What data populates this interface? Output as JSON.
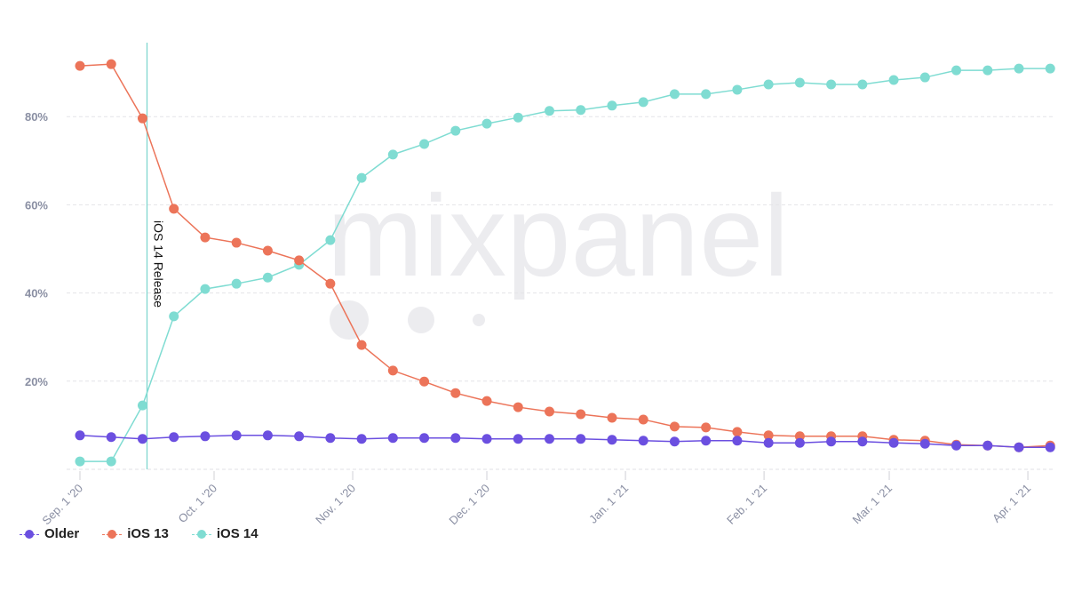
{
  "chart_data": {
    "type": "line",
    "title": "",
    "xlabel": "",
    "ylabel": "",
    "ylim": [
      0,
      100
    ],
    "yticks": [
      20,
      40,
      60,
      80
    ],
    "ytick_format": "percent",
    "grid": true,
    "legend_position": "bottom-left",
    "x_tick_labels": [
      {
        "date": "2020-09-01",
        "label": "Sep. 1 '20"
      },
      {
        "date": "2020-10-01",
        "label": "Oct. 1 '20"
      },
      {
        "date": "2020-11-01",
        "label": "Nov. 1 '20"
      },
      {
        "date": "2020-12-01",
        "label": "Dec. 1 '20"
      },
      {
        "date": "2021-01-01",
        "label": "Jan. 1 '21"
      },
      {
        "date": "2021-02-01",
        "label": "Feb. 1 '21"
      },
      {
        "date": "2021-03-01",
        "label": "Mar. 1 '21"
      },
      {
        "date": "2021-04-01",
        "label": "Apr. 1 '21"
      }
    ],
    "x": [
      "2020-09-01",
      "2020-09-08",
      "2020-09-15",
      "2020-09-22",
      "2020-09-29",
      "2020-10-06",
      "2020-10-13",
      "2020-10-20",
      "2020-10-27",
      "2020-11-03",
      "2020-11-10",
      "2020-11-17",
      "2020-11-24",
      "2020-12-01",
      "2020-12-08",
      "2020-12-15",
      "2020-12-22",
      "2020-12-29",
      "2021-01-05",
      "2021-01-12",
      "2021-01-19",
      "2021-01-26",
      "2021-02-02",
      "2021-02-09",
      "2021-02-16",
      "2021-02-23",
      "2021-03-02",
      "2021-03-09",
      "2021-03-16",
      "2021-03-23",
      "2021-03-30",
      "2021-04-06"
    ],
    "series": [
      {
        "name": "Older",
        "color": "#6b4fe0",
        "values": [
          7.7,
          7.3,
          6.9,
          7.3,
          7.5,
          7.7,
          7.7,
          7.5,
          7.1,
          6.9,
          7.1,
          7.1,
          7.1,
          6.9,
          6.9,
          6.9,
          6.9,
          6.7,
          6.5,
          6.3,
          6.5,
          6.5,
          6.0,
          6.0,
          6.3,
          6.3,
          6.0,
          5.8,
          5.4,
          5.4,
          5.0,
          5.0
        ]
      },
      {
        "name": "iOS 13",
        "color": "#ec7459",
        "values": [
          91.5,
          91.9,
          79.6,
          59.1,
          52.6,
          51.4,
          49.6,
          47.4,
          42.1,
          28.2,
          22.4,
          19.9,
          17.3,
          15.5,
          14.1,
          13.1,
          12.5,
          11.7,
          11.3,
          9.7,
          9.5,
          8.5,
          7.7,
          7.5,
          7.5,
          7.5,
          6.7,
          6.5,
          5.6,
          5.4,
          5.0,
          5.4
        ]
      },
      {
        "name": "iOS 14",
        "color": "#7fdcd2",
        "values": [
          1.8,
          1.8,
          14.5,
          34.7,
          40.9,
          42.1,
          43.5,
          46.4,
          52.0,
          66.1,
          71.4,
          73.8,
          76.8,
          78.4,
          79.8,
          81.3,
          81.5,
          82.5,
          83.3,
          85.1,
          85.1,
          86.1,
          87.3,
          87.7,
          87.3,
          87.3,
          88.3,
          88.9,
          90.5,
          90.5,
          90.9,
          90.9
        ]
      }
    ],
    "annotations": [
      {
        "date": "2020-09-16",
        "label": "iOS 14 Release",
        "color": "#7fd6cf"
      }
    ]
  },
  "watermark": "mixpanel"
}
